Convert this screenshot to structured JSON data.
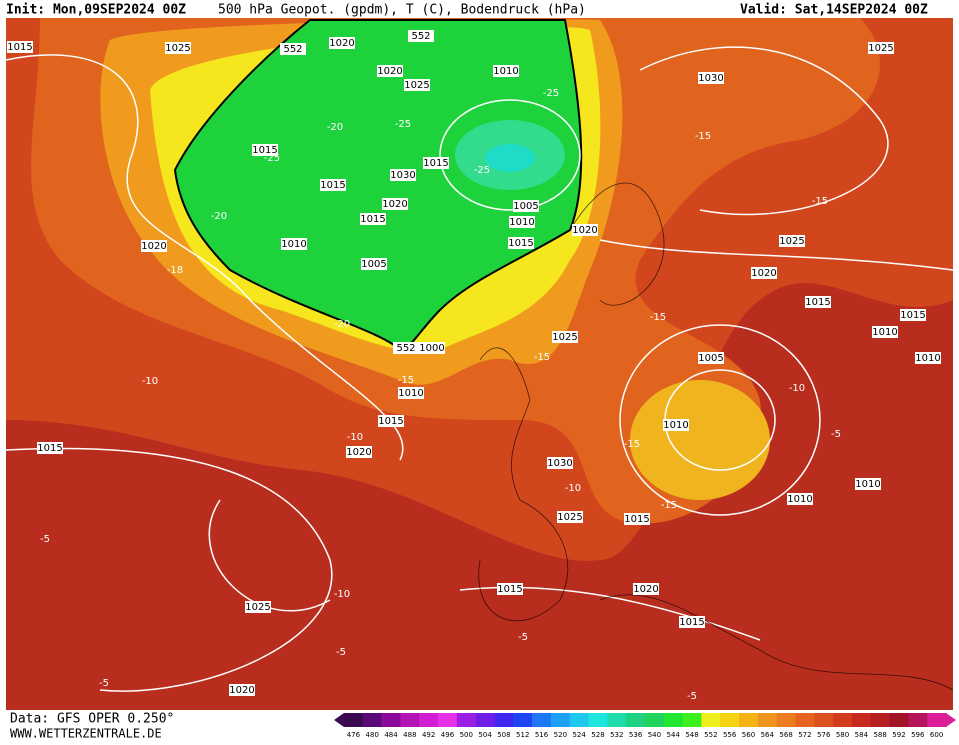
{
  "header": {
    "init": "Init: Mon,09SEP2024 00Z",
    "title": "500 hPa Geopot. (gpdm), T (C), Bodendruck (hPa)",
    "valid": "Valid: Sat,14SEP2024 00Z"
  },
  "footer": {
    "data": "Data: GFS OPER 0.250°",
    "site": "WWW.WETTERZENTRALE.DE"
  },
  "map": {
    "pressure_labels": [
      "1015",
      "1025",
      "1020",
      "1020",
      "1025",
      "1010",
      "1015",
      "1015",
      "1030",
      "1015",
      "1020",
      "1015",
      "1005",
      "1010",
      "1015",
      "1010",
      "1005",
      "1020",
      "1020",
      "1000",
      "1010",
      "1015",
      "1020",
      "1015",
      "1025",
      "1030",
      "1025",
      "1025",
      "1020",
      "1015",
      "1010",
      "1015",
      "1010",
      "1005",
      "1010",
      "1030",
      "1025",
      "1015",
      "1010",
      "1010",
      "1015",
      "1020",
      "1015",
      "1025",
      "1020"
    ],
    "temperature_labels": [
      "-25",
      "-25",
      "-20",
      "-25",
      "-25",
      "-20",
      "-18",
      "-20",
      "-15",
      "-15",
      "-15",
      "-10",
      "-10",
      "-15",
      "-15",
      "-10",
      "-5",
      "-15",
      "-15",
      "-10",
      "-5",
      "-10",
      "-5",
      "-5",
      "-5",
      "-5"
    ],
    "height_labels": [
      "552",
      "552",
      "552"
    ]
  },
  "colorbar": {
    "values": [
      476,
      480,
      484,
      488,
      492,
      496,
      500,
      504,
      508,
      512,
      516,
      520,
      524,
      528,
      532,
      536,
      540,
      544,
      548,
      552,
      556,
      560,
      564,
      568,
      572,
      576,
      580,
      584,
      588,
      592,
      596,
      600
    ],
    "colors": [
      "#3c0a50",
      "#5a0a78",
      "#8c0a9a",
      "#b414b4",
      "#d21ed2",
      "#e632e6",
      "#9b1ee6",
      "#6e1ee6",
      "#3c28f0",
      "#1e46f5",
      "#1e78f5",
      "#1ea0f5",
      "#1ec8f0",
      "#1ee6dc",
      "#1edcaa",
      "#1ed282",
      "#1ed25a",
      "#1ee632",
      "#3cf01e",
      "#f0f01e",
      "#f5d214",
      "#f5b414",
      "#f0961e",
      "#eb7d1e",
      "#e6641e",
      "#dc501e",
      "#d23c1e",
      "#c8281e",
      "#b41e1e",
      "#a01428",
      "#b4145a",
      "#dc1e96"
    ]
  }
}
